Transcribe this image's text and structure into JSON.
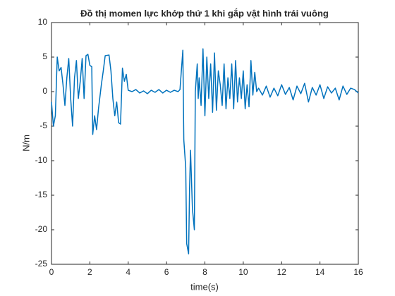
{
  "chart_data": {
    "type": "line",
    "title": "Đồ thị momen lực khớp thứ 1 khi gắp vật hình trái vuông",
    "xlabel": "time(s)",
    "ylabel": "N/m",
    "x": [
      0,
      0.1,
      0.2,
      0.3,
      0.4,
      0.5,
      0.6,
      0.7,
      0.8,
      0.9,
      1.0,
      1.1,
      1.2,
      1.3,
      1.4,
      1.5,
      1.6,
      1.7,
      1.8,
      1.9,
      2.0,
      2.1,
      2.15,
      2.25,
      2.35,
      2.45,
      2.6,
      2.7,
      2.8,
      3.0,
      3.1,
      3.2,
      3.3,
      3.4,
      3.5,
      3.6,
      3.7,
      3.8,
      3.9,
      4.0,
      4.2,
      4.4,
      4.6,
      4.8,
      5.0,
      5.2,
      5.4,
      5.6,
      5.8,
      6.0,
      6.2,
      6.4,
      6.6,
      6.7,
      6.85,
      6.9,
      7.0,
      7.05,
      7.15,
      7.2,
      7.25,
      7.35,
      7.45,
      7.5,
      7.6,
      7.65,
      7.7,
      7.8,
      7.9,
      8.0,
      8.1,
      8.2,
      8.3,
      8.4,
      8.5,
      8.6,
      8.7,
      8.8,
      8.9,
      9.0,
      9.1,
      9.2,
      9.3,
      9.4,
      9.5,
      9.6,
      9.7,
      9.8,
      9.9,
      10.0,
      10.1,
      10.2,
      10.3,
      10.4,
      10.5,
      10.6,
      10.7,
      10.8,
      11.0,
      11.2,
      11.4,
      11.6,
      11.8,
      12.0,
      12.2,
      12.4,
      12.6,
      12.8,
      13.0,
      13.2,
      13.4,
      13.6,
      13.8,
      14.0,
      14.2,
      14.4,
      14.6,
      14.8,
      15.0,
      15.2,
      15.4,
      15.6,
      15.8,
      16.0
    ],
    "series": [
      {
        "name": "torque",
        "color": "#0072bd",
        "values": [
          -1.5,
          -5,
          -3.5,
          5,
          3,
          3.5,
          1,
          -2,
          2,
          4.8,
          -1,
          -5,
          2,
          4.5,
          -1,
          1.5,
          4.8,
          -1,
          5.2,
          5.4,
          3.8,
          3.6,
          -6.2,
          -3.5,
          -5.5,
          -2.5,
          1,
          3,
          5.2,
          5.3,
          3,
          -1,
          -3.5,
          -1.5,
          -4.5,
          -4.7,
          3.4,
          1.5,
          2.5,
          0.2,
          0,
          0.3,
          -0.2,
          0.1,
          -0.3,
          0.2,
          -0.1,
          0.3,
          -0.2,
          0.2,
          -0.1,
          0.2,
          0,
          0.3,
          6,
          -7,
          -11,
          -22,
          -23.5,
          -14,
          -8.5,
          -17,
          -20,
          0,
          4,
          -1,
          2,
          -2,
          6.2,
          -3.5,
          5,
          -1,
          4,
          -3,
          5.6,
          -2.7,
          3,
          1,
          -2,
          4,
          -2.5,
          2,
          -1,
          4,
          -2.5,
          4.5,
          -1.5,
          2,
          -1,
          3,
          -2.5,
          1,
          -2.2,
          4.5,
          -0.5,
          2.8,
          0,
          0.5,
          -0.5,
          0.8,
          -0.8,
          0.5,
          -0.6,
          1,
          -0.4,
          0.6,
          -1.2,
          0.8,
          -0.3,
          1.2,
          -1.5,
          0.6,
          -0.5,
          1,
          -1,
          0.7,
          -0.2,
          0.5,
          -1.2,
          0.8,
          -0.4,
          0.5,
          0.3,
          -0.2
        ]
      }
    ],
    "xlim": [
      0,
      16
    ],
    "ylim": [
      -25,
      10
    ],
    "xticks": [
      0,
      2,
      4,
      6,
      8,
      10,
      12,
      14,
      16
    ],
    "yticks": [
      -25,
      -20,
      -15,
      -10,
      -5,
      0,
      5,
      10
    ]
  }
}
